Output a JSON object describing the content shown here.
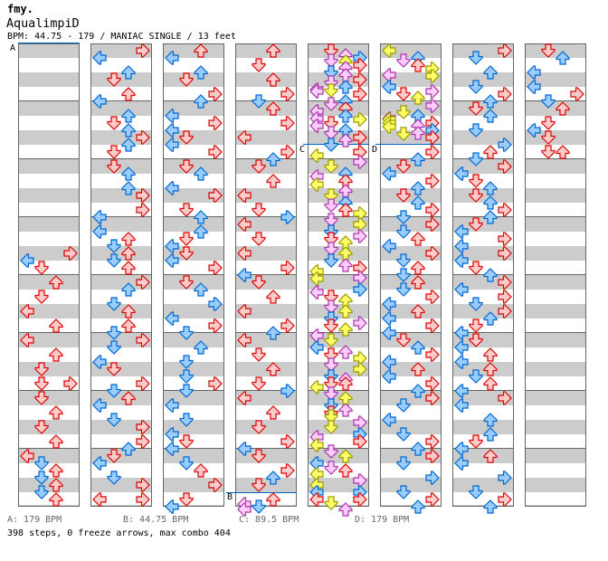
{
  "header": {
    "logo": "fmy.",
    "title": "AqualimpiD",
    "meta": "BPM: 44.75 - 179 / MANIAC SINGLE / 13 feet"
  },
  "markers": {
    "a": "A",
    "b": "B",
    "c": "C",
    "d": "D"
  },
  "footer": {
    "bpm_a": "A: 179 BPM",
    "bpm_b": "B: 44.75 BPM",
    "bpm_c": "C: 89.5 BPM",
    "bpm_d": "D: 179 BPM",
    "summary": "398 steps, 0 freeze arrows, max combo 404"
  },
  "colors": {
    "r": {
      "fill": "#ffcccc",
      "stroke": "#dd0000"
    },
    "b": {
      "fill": "#99ccff",
      "stroke": "#0066cc"
    },
    "y": {
      "fill": "#ffff66",
      "stroke": "#999900"
    },
    "p": {
      "fill": "#ffccff",
      "stroke": "#aa33aa"
    },
    "bpm_line": "#0066cc"
  },
  "columns": [
    "R28r L29b D30r U32r D34r L36r U38r L40r U42r D44r D46r R46r D48r U50r D52r U54r L56r D57b U58r D59b U60r D61b U62r",
    "R0r L1b U3b D4r U6r L7b U9b D10r U11b R12r U13b D14r D16r U17b U19b R20r R22r L23b L25b U26r D27b U28r D29b U30r R32r U33b D35b U36r U38r D39b R40r D41b L43b D44r R46r D47b U48r L49b D51b R52r R54r U55b D56r L57b D59b R60r L62r R62r",
    "U0r L1b U3b D4r R6r U7b L9b R10r L11b D12r L13b R14r D16r U17b L19b R20r D22r U23b U25b D26r L27b D28r L29b R30r D32r U33b R35b L37b R38r D39b U41b D43b D45b R46r D47b L49b D51b L53b D54r L55b D57b U58r R60r D62r L63b",
    "U0r D2r U4r R6r D7b U8r R10r L12r R14r U15b D16r U18r L20r D22r R23b L24r D26r L28r R30r L31b D32r U34r L36r R38r U39b L40r D42r U44r D46r R47b L48r U50r D52r R54r L55b D56r R58r U59b D60r U62r D63b L62.67p L63.33p",
    "D0r U0.67p R1b D1.33p U1.5y R2r U2.33p D3b U3.33p R4r D4.33p U5b L5.33p D5.5y L5.67p R6r U7b D7.33p U8r L8.33p U9b L9.33p R9.5y D10r L10.33p D11.33p U11b R12r U12.33p D13b R14r L14.5y R15.33p D16y U17b L17.33p U18r L18.5y U19.33p D20y U21b D21.33p U22r R22.5y D23.33p R24y D25b R25.67p D26r U26.5y D27.33p U28y D29b U29.67p R30r L30.5y L31.5y R31.33p R33b L33.33p D34r U34.5y D35.33p U36y D37b R37.67p D38r U38.5y L39.33p D40y L41b U41.67p D42r R42.5y D43.33p R44y D45b U45.33p D46r U46r L46.5y D47.33p U48y D49b U49.67p D50r D50.5y R51.33p D52y R53b L53.33p R54r L54.5y D55.33p U56y L57b D57.67p U58r L58.5y R59.33p L60y L61b R61b L62r R62r D62.5y U63.33p",
    "L0y U1b D1.33p U2r R2.5y L3.33p R3.5y L5b R5.67p D6r U6.5y R7.67p D8.5y U9b L9.33p L9.5y L10y L10.5y R10r U10.33p R11b U11.33p D11.5y R12r R14r U15b D16r L17b R18r U19b D20r U21b R22r D23b R24r D25b U26r L27b R28r D29b U30r D31b U32r D33b R34r L35b U36r L37b R38r L39b D40r U41b R42r L43b U44r L45b R46r U47b R48r D49b L51b D53b R54r U55b R56r D57b R59b D61b R62r U63b",
    "R0r D1b U3b D5b R6r U7b D8r U9b D11b R13b U14r D15b R16r L17b D18r U19b D20r U21b R22r U23b D24r L25b R26r L27b R28r L29b D30r U31b R32r L33b R34r D35b R36r U37b D38r L39b D40r L41b U42r L43b U44r D45b U46r L47b R48r L49b U51b U53b D54r L55b U56r L57b R59b D61b R62r U63b",
    "D0r U1b L3b L5b R6r D7b U8r D10r L11b D12r D14r U14r"
  ]
}
